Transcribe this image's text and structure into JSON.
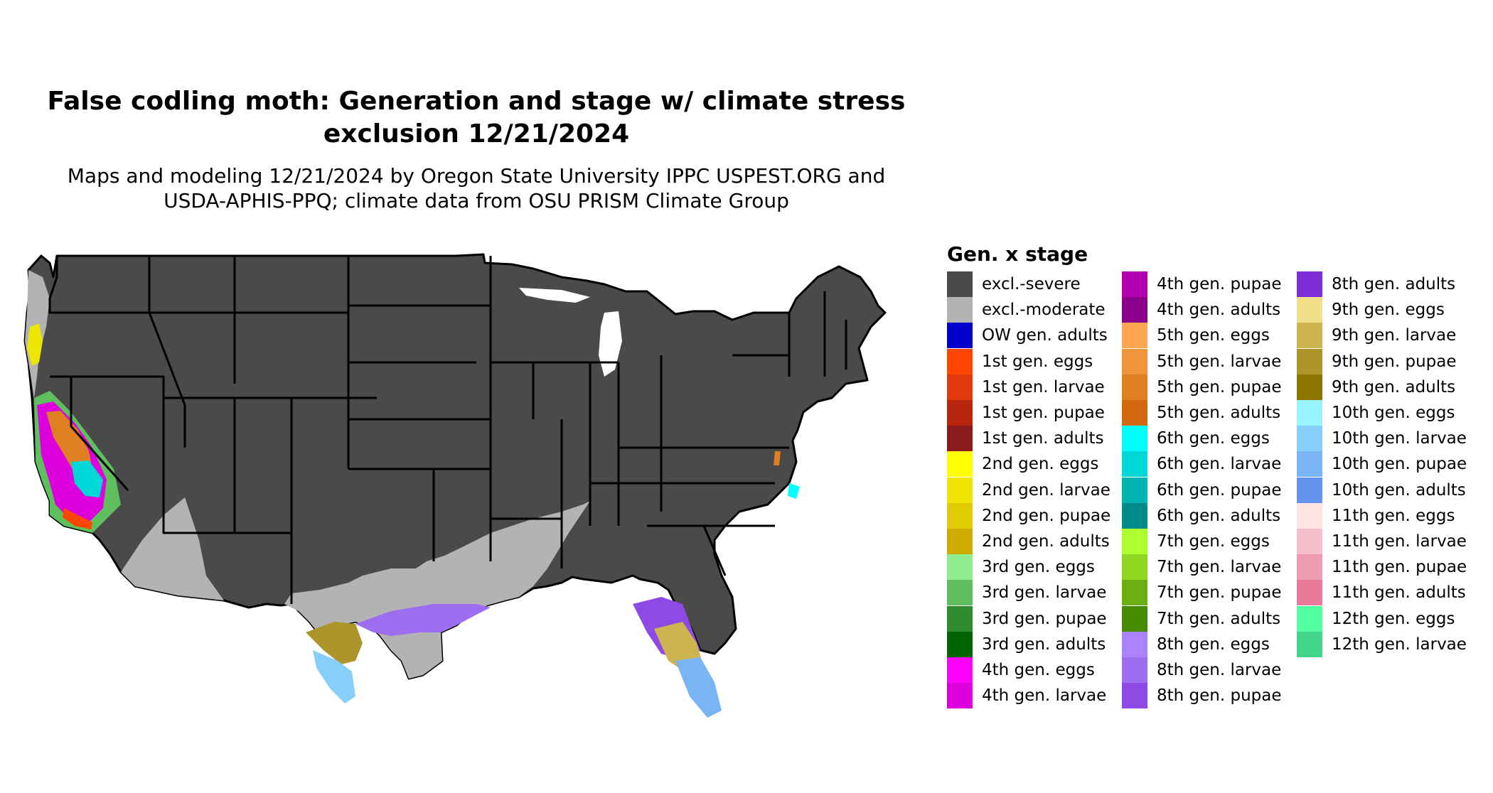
{
  "title_line1": "False codling moth: Generation and stage w/ climate stress",
  "title_line2": "exclusion 12/21/2024",
  "subtitle_line1": "Maps and modeling 12/21/2024 by Oregon State University IPPC USPEST.ORG and",
  "subtitle_line2": "USDA-APHIS-PPQ; climate data from OSU PRISM Climate Group",
  "map": {
    "region": "Contiguous United States",
    "state_fill": "#4a4a4a",
    "border_color": "#000000"
  },
  "legend": {
    "title": "Gen. x stage",
    "items": [
      {
        "label": "excl.-severe",
        "color": "#4a4a4a"
      },
      {
        "label": "excl.-moderate",
        "color": "#b3b3b3"
      },
      {
        "label": "OW gen. adults",
        "color": "#0000cd"
      },
      {
        "label": "1st gen. eggs",
        "color": "#ff4500"
      },
      {
        "label": "1st gen. larvae",
        "color": "#e03a0e"
      },
      {
        "label": "1st gen. pupae",
        "color": "#b8260f"
      },
      {
        "label": "1st gen. adults",
        "color": "#8b1a1a"
      },
      {
        "label": "2nd gen. eggs",
        "color": "#ffff00"
      },
      {
        "label": "2nd gen. larvae",
        "color": "#eee600"
      },
      {
        "label": "2nd gen. pupae",
        "color": "#e0cc00"
      },
      {
        "label": "2nd gen. adults",
        "color": "#cdab00"
      },
      {
        "label": "3rd gen. eggs",
        "color": "#90ee90"
      },
      {
        "label": "3rd gen. larvae",
        "color": "#5fbf5f"
      },
      {
        "label": "3rd gen. pupae",
        "color": "#2e8b2e"
      },
      {
        "label": "3rd gen. adults",
        "color": "#006400"
      },
      {
        "label": "4th gen. eggs",
        "color": "#ff00ff"
      },
      {
        "label": "4th gen. larvae",
        "color": "#dd00dd"
      },
      {
        "label": "4th gen. pupae",
        "color": "#b000b0"
      },
      {
        "label": "4th gen. adults",
        "color": "#8b008b"
      },
      {
        "label": "5th gen. eggs",
        "color": "#ffa54f"
      },
      {
        "label": "5th gen. larvae",
        "color": "#f0953a"
      },
      {
        "label": "5th gen. pupae",
        "color": "#e07f22"
      },
      {
        "label": "5th gen. adults",
        "color": "#d2690e"
      },
      {
        "label": "6th gen. eggs",
        "color": "#00ffff"
      },
      {
        "label": "6th gen. larvae",
        "color": "#00d8d8"
      },
      {
        "label": "6th gen. pupae",
        "color": "#00b2b2"
      },
      {
        "label": "6th gen. adults",
        "color": "#008b8b"
      },
      {
        "label": "7th gen. eggs",
        "color": "#adff2f"
      },
      {
        "label": "7th gen. larvae",
        "color": "#8ed620"
      },
      {
        "label": "7th gen. pupae",
        "color": "#6caf12"
      },
      {
        "label": "7th gen. adults",
        "color": "#458b00"
      },
      {
        "label": "8th gen. eggs",
        "color": "#ab82ff"
      },
      {
        "label": "8th gen. larvae",
        "color": "#9d6ef0"
      },
      {
        "label": "8th gen. pupae",
        "color": "#8f4ae6"
      },
      {
        "label": "8th gen. adults",
        "color": "#7b2fd4"
      },
      {
        "label": "9th gen. eggs",
        "color": "#f0e08a"
      },
      {
        "label": "9th gen. larvae",
        "color": "#ccb450"
      },
      {
        "label": "9th gen. pupae",
        "color": "#ad952b"
      },
      {
        "label": "9th gen. adults",
        "color": "#8b7500"
      },
      {
        "label": "10th gen. eggs",
        "color": "#98f5ff"
      },
      {
        "label": "10th gen. larvae",
        "color": "#87cefa"
      },
      {
        "label": "10th gen. pupae",
        "color": "#79b4f5"
      },
      {
        "label": "10th gen. adults",
        "color": "#6495ed"
      },
      {
        "label": "11th gen. eggs",
        "color": "#ffe4e1"
      },
      {
        "label": "11th gen. larvae",
        "color": "#f7bfcc"
      },
      {
        "label": "11th gen. pupae",
        "color": "#f09cb4"
      },
      {
        "label": "11th gen. adults",
        "color": "#e87a9c"
      },
      {
        "label": "12th gen. eggs",
        "color": "#54ff9f"
      },
      {
        "label": "12th gen. larvae",
        "color": "#43d68a"
      }
    ]
  }
}
